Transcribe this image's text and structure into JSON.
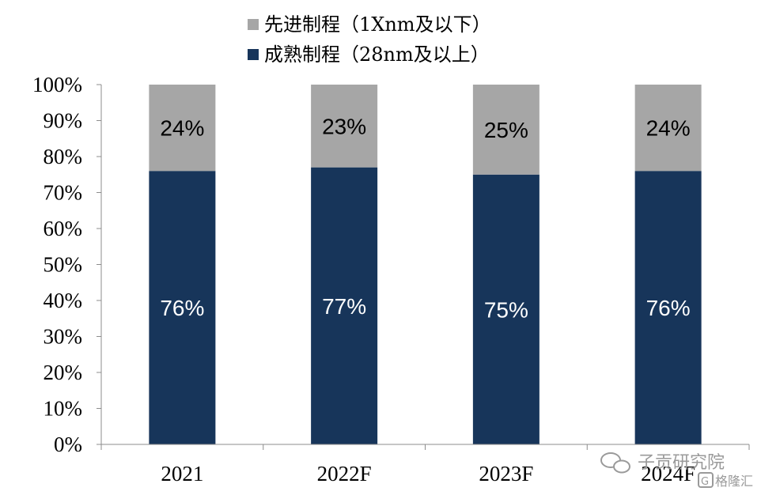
{
  "chart_data": {
    "type": "bar",
    "stacked": true,
    "categories": [
      "2021",
      "2022F",
      "2023F",
      "2024F"
    ],
    "series": [
      {
        "name": "成熟制程（28nm及以上）",
        "values": [
          76,
          77,
          75,
          76
        ],
        "labels": [
          "76%",
          "77%",
          "75%",
          "76%"
        ]
      },
      {
        "name": "先进制程（1Xnm及以下）",
        "values": [
          24,
          23,
          25,
          24
        ],
        "labels": [
          "24%",
          "23%",
          "25%",
          "24%"
        ]
      }
    ],
    "yticks": [
      "0%",
      "10%",
      "20%",
      "30%",
      "40%",
      "50%",
      "60%",
      "70%",
      "80%",
      "90%",
      "100%"
    ],
    "ylim": [
      0,
      100
    ],
    "legend_position": "top",
    "grid": false
  },
  "colors": {
    "mature": "#17355a",
    "advanced": "#a6a6a6",
    "mature_label": "#ffffff",
    "advanced_label": "#000000"
  },
  "watermark": {
    "text": "子贡研究院",
    "brand": "格隆汇"
  }
}
